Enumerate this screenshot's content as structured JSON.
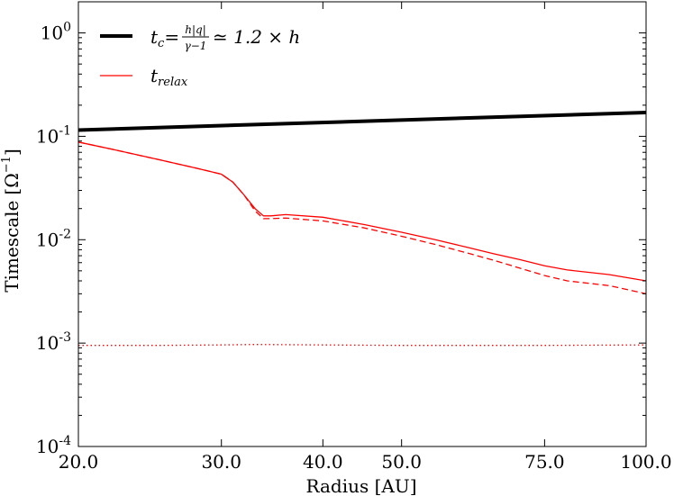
{
  "chart_data": {
    "type": "line",
    "xlabel": "Radius [AU]",
    "ylabel_text": "Timescale",
    "ylabel_unit": "[Ω",
    "ylabel_unit_exp": "−1",
    "ylabel_unit_close": "]",
    "xscale": "log",
    "yscale": "log",
    "xlim": [
      20,
      100
    ],
    "ylim": [
      0.0001,
      2
    ],
    "grid": false,
    "legend_position": "top-left",
    "x_ticks": [
      {
        "value": 20,
        "label": "20.0"
      },
      {
        "value": 30,
        "label": "30.0"
      },
      {
        "value": 40,
        "label": "40.0"
      },
      {
        "value": 50,
        "label": "50.0"
      },
      {
        "value": 75,
        "label": "75.0"
      },
      {
        "value": 100,
        "label": "100.0"
      }
    ],
    "y_ticks": [
      {
        "value": 1,
        "base": "10",
        "exp": "0"
      },
      {
        "value": 0.1,
        "base": "10",
        "exp": "-1"
      },
      {
        "value": 0.01,
        "base": "10",
        "exp": "-2"
      },
      {
        "value": 0.001,
        "base": "10",
        "exp": "-3"
      },
      {
        "value": 0.0001,
        "base": "10",
        "exp": "-4"
      }
    ],
    "legend": {
      "tc_label": "t_c = h|q| / (γ−1) ≃ 1.2 × h",
      "tc_lhs": "t",
      "tc_sub": "c",
      "tc_frac_num": "h|q|",
      "tc_frac_den": "γ−1",
      "tc_rhs": "≃ 1.2 × h",
      "trelax_main": "t",
      "trelax_sub": "relax"
    },
    "series": [
      {
        "name": "t_c",
        "style": "solid-thick",
        "color": "#000000",
        "x": [
          20,
          100
        ],
        "y": [
          0.115,
          0.17
        ]
      },
      {
        "name": "t_relax",
        "style": "solid",
        "color": "#ff0000",
        "x": [
          20,
          22,
          25,
          28,
          30,
          31,
          32,
          33,
          33.8,
          34.5,
          36,
          40,
          45,
          50,
          55,
          60,
          65,
          70,
          75,
          80,
          90,
          100
        ],
        "y": [
          0.088,
          0.075,
          0.06,
          0.049,
          0.043,
          0.036,
          0.027,
          0.02,
          0.017,
          0.017,
          0.0175,
          0.0165,
          0.014,
          0.0118,
          0.01,
          0.0085,
          0.0073,
          0.0064,
          0.0056,
          0.0051,
          0.0046,
          0.004
        ]
      },
      {
        "style": "dashed",
        "color": "#ff0000",
        "x": [
          20,
          22,
          25,
          28,
          30,
          31,
          32,
          33,
          33.8,
          34.5,
          36,
          40,
          45,
          50,
          55,
          60,
          65,
          70,
          75,
          80,
          90,
          100
        ],
        "y": [
          0.088,
          0.075,
          0.06,
          0.049,
          0.043,
          0.036,
          0.027,
          0.019,
          0.016,
          0.016,
          0.0162,
          0.0152,
          0.013,
          0.0108,
          0.009,
          0.0075,
          0.0063,
          0.0053,
          0.0045,
          0.004,
          0.0036,
          0.003
        ]
      },
      {
        "style": "dotted",
        "color": "#ff0000",
        "x": [
          20,
          25,
          30,
          33,
          40,
          50,
          75,
          100
        ],
        "y": [
          0.00095,
          0.00095,
          0.00096,
          0.00097,
          0.00096,
          0.00095,
          0.00095,
          0.00096
        ]
      }
    ]
  }
}
